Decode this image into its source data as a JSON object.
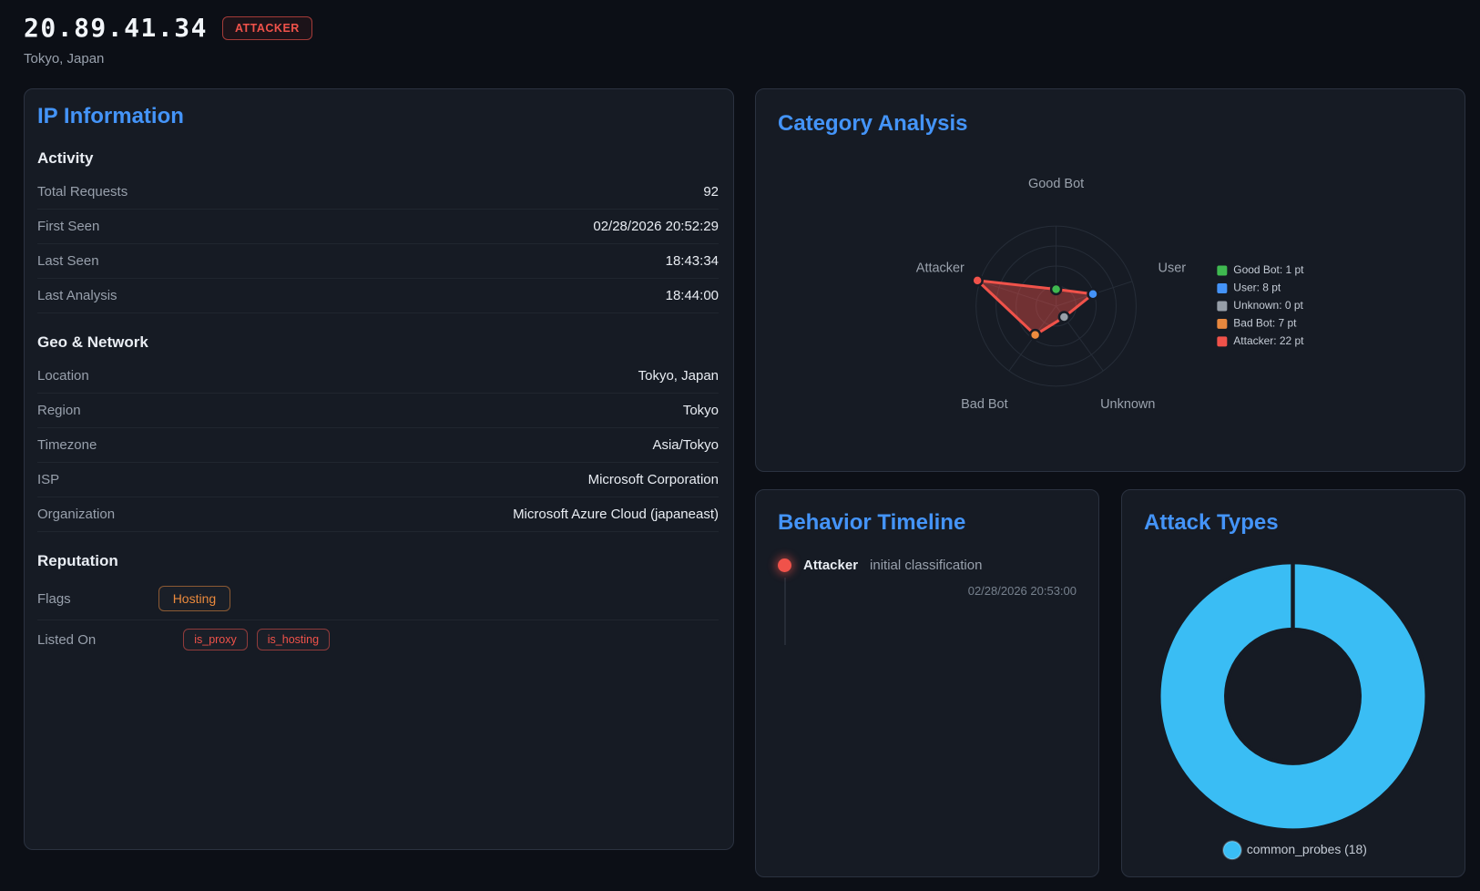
{
  "header": {
    "ip": "20.89.41.34",
    "badge": "ATTACKER",
    "subtitle": "Tokyo, Japan"
  },
  "panels": {
    "ip_information": {
      "title": "IP Information",
      "sections": [
        {
          "heading": "Activity",
          "rows": [
            {
              "label": "Total Requests",
              "value": "92"
            },
            {
              "label": "First Seen",
              "value": "02/28/2026 20:52:29"
            },
            {
              "label": "Last Seen",
              "value": "18:43:34"
            },
            {
              "label": "Last Analysis",
              "value": "18:44:00"
            }
          ]
        },
        {
          "heading": "Geo & Network",
          "rows": [
            {
              "label": "Location",
              "value": "Tokyo, Japan"
            },
            {
              "label": "Region",
              "value": "Tokyo"
            },
            {
              "label": "Timezone",
              "value": "Asia/Tokyo"
            },
            {
              "label": "ISP",
              "value": "Microsoft Corporation"
            },
            {
              "label": "Organization",
              "value": "Microsoft Azure Cloud (japaneast)"
            }
          ]
        },
        {
          "heading": "Reputation",
          "rows": [
            {
              "label": "Flags",
              "badges": [
                {
                  "text": "Hosting",
                  "color": "#eb8a3d",
                  "size": "md"
                }
              ]
            },
            {
              "label": "Listed On",
              "badges": [
                {
                  "text": "is_proxy",
                  "color": "#f0524a",
                  "size": "sm"
                },
                {
                  "text": "is_hosting",
                  "color": "#f0524a",
                  "size": "sm"
                }
              ],
              "no_divider": true
            }
          ]
        }
      ]
    },
    "category_analysis": {
      "title": "Category Analysis"
    },
    "behavior_timeline": {
      "title": "Behavior Timeline",
      "events": [
        {
          "category": "Attacker",
          "description": "initial classification",
          "timestamp": "02/28/2026 20:53:00"
        }
      ]
    },
    "attack_types": {
      "title": "Attack Types"
    }
  },
  "chart_data": [
    {
      "type": "radar",
      "title": "Category Analysis",
      "categories": [
        "Good Bot",
        "User",
        "Unknown",
        "Bad Bot",
        "Attacker"
      ],
      "values": [
        1,
        8,
        0,
        7,
        22
      ],
      "unit": "pt",
      "max": 22,
      "rings": 4,
      "grid": true,
      "stroke_color": "#f0524a",
      "fill_color": "rgba(241,82,74,0.42)",
      "point_colors": [
        "#3fb950",
        "#4493f8",
        "#98a0a8",
        "#ec8b3e",
        "#f0524a"
      ],
      "legend_position": "right",
      "legend": [
        {
          "label": "Good Bot: 1 pt",
          "color": "#3fb950"
        },
        {
          "label": "User: 8 pt",
          "color": "#4493f8"
        },
        {
          "label": "Unknown: 0 pt",
          "color": "#969ea8"
        },
        {
          "label": "Bad Bot: 7 pt",
          "color": "#e8883e"
        },
        {
          "label": "Attacker: 22 pt",
          "color": "#f0524a"
        }
      ]
    },
    {
      "type": "donut",
      "title": "Attack Types",
      "segments": [
        {
          "label": "common_probes",
          "value": 18,
          "color": "#3abdf4"
        }
      ],
      "legend": [
        {
          "label": "common_probes (18)",
          "color": "#3abdf4"
        }
      ],
      "legend_position": "bottom"
    }
  ],
  "colors": {
    "page_bg": "#0c0f16",
    "panel_bg": "#161b24",
    "panel_border": "#2b3240",
    "accent_blue": "#4494f8",
    "danger_red": "#f0524a",
    "warning_orange": "#eb8a3d"
  }
}
